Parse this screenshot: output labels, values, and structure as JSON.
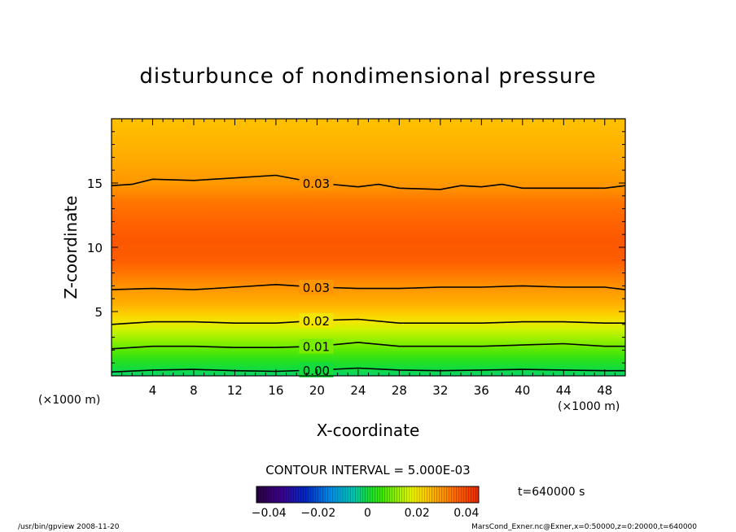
{
  "chart_data": {
    "type": "contour",
    "title": "disturbunce of nondimensional pressure",
    "xlabel": "X-coordinate",
    "ylabel": "Z-coordinate",
    "x_unit_left": "(×1000 m)",
    "x_unit_right": "(×1000 m)",
    "xlim": [
      0,
      50
    ],
    "ylim": [
      0,
      20
    ],
    "x_ticks": [
      "4",
      "8",
      "12",
      "16",
      "20",
      "24",
      "28",
      "32",
      "36",
      "40",
      "44",
      "48"
    ],
    "x_tick_values": [
      4,
      8,
      12,
      16,
      20,
      24,
      28,
      32,
      36,
      40,
      44,
      48
    ],
    "y_ticks": [
      "5",
      "10",
      "15"
    ],
    "y_tick_values": [
      5,
      10,
      15
    ],
    "contour_interval_label": "CONTOUR INTERVAL = 5.000E-03",
    "time_label": "t=640000 s",
    "colorbar": {
      "ticks": [
        "−0.04",
        "−0.02",
        "0",
        "0.02",
        "0.04"
      ],
      "tick_values": [
        -0.04,
        -0.02,
        0,
        0.02,
        0.04
      ],
      "range": [
        -0.045,
        0.045
      ]
    },
    "field_profile": [
      {
        "z": 0.0,
        "value": -0.002
      },
      {
        "z": 0.6,
        "value": 0.0
      },
      {
        "z": 1.2,
        "value": 0.003
      },
      {
        "z": 2.0,
        "value": 0.008
      },
      {
        "z": 2.4,
        "value": 0.01
      },
      {
        "z": 3.0,
        "value": 0.013
      },
      {
        "z": 3.6,
        "value": 0.016
      },
      {
        "z": 4.2,
        "value": 0.02
      },
      {
        "z": 5.0,
        "value": 0.024
      },
      {
        "z": 5.6,
        "value": 0.027
      },
      {
        "z": 6.8,
        "value": 0.03
      },
      {
        "z": 8.0,
        "value": 0.034
      },
      {
        "z": 9.0,
        "value": 0.037
      },
      {
        "z": 10.5,
        "value": 0.038
      },
      {
        "z": 12.0,
        "value": 0.036
      },
      {
        "z": 13.5,
        "value": 0.034
      },
      {
        "z": 14.8,
        "value": 0.03
      },
      {
        "z": 16.5,
        "value": 0.028
      },
      {
        "z": 18.5,
        "value": 0.026
      },
      {
        "z": 20.0,
        "value": 0.025
      }
    ],
    "contour_lines": [
      {
        "label": "0.00",
        "level": 0.0,
        "points": [
          [
            0,
            0.3
          ],
          [
            4,
            0.45
          ],
          [
            8,
            0.5
          ],
          [
            12,
            0.4
          ],
          [
            16,
            0.35
          ],
          [
            20,
            0.45
          ],
          [
            24,
            0.6
          ],
          [
            28,
            0.45
          ],
          [
            32,
            0.4
          ],
          [
            36,
            0.45
          ],
          [
            40,
            0.5
          ],
          [
            44,
            0.45
          ],
          [
            48,
            0.4
          ],
          [
            50,
            0.4
          ]
        ]
      },
      {
        "label": "0.01",
        "level": 0.01,
        "points": [
          [
            0,
            2.1
          ],
          [
            4,
            2.3
          ],
          [
            8,
            2.3
          ],
          [
            12,
            2.2
          ],
          [
            16,
            2.2
          ],
          [
            20,
            2.3
          ],
          [
            24,
            2.6
          ],
          [
            28,
            2.3
          ],
          [
            32,
            2.3
          ],
          [
            36,
            2.3
          ],
          [
            40,
            2.4
          ],
          [
            44,
            2.5
          ],
          [
            48,
            2.3
          ],
          [
            50,
            2.3
          ]
        ]
      },
      {
        "label": "0.02",
        "level": 0.02,
        "points": [
          [
            0,
            4.0
          ],
          [
            4,
            4.2
          ],
          [
            8,
            4.2
          ],
          [
            12,
            4.1
          ],
          [
            16,
            4.1
          ],
          [
            20,
            4.3
          ],
          [
            24,
            4.4
          ],
          [
            28,
            4.1
          ],
          [
            32,
            4.1
          ],
          [
            36,
            4.1
          ],
          [
            40,
            4.2
          ],
          [
            44,
            4.2
          ],
          [
            48,
            4.1
          ],
          [
            50,
            4.1
          ]
        ]
      },
      {
        "label": "0.03",
        "level": 0.03,
        "points": [
          [
            0,
            6.7
          ],
          [
            4,
            6.8
          ],
          [
            8,
            6.7
          ],
          [
            12,
            6.9
          ],
          [
            16,
            7.1
          ],
          [
            20,
            6.9
          ],
          [
            24,
            6.8
          ],
          [
            28,
            6.8
          ],
          [
            32,
            6.9
          ],
          [
            36,
            6.9
          ],
          [
            40,
            7.0
          ],
          [
            44,
            6.9
          ],
          [
            48,
            6.9
          ],
          [
            50,
            6.7
          ]
        ]
      },
      {
        "label": "0.03",
        "level": 0.03,
        "points": [
          [
            0,
            14.8
          ],
          [
            2,
            14.9
          ],
          [
            4,
            15.3
          ],
          [
            8,
            15.2
          ],
          [
            12,
            15.4
          ],
          [
            16,
            15.6
          ],
          [
            20,
            15.0
          ],
          [
            24,
            14.7
          ],
          [
            26,
            14.9
          ],
          [
            28,
            14.6
          ],
          [
            32,
            14.5
          ],
          [
            34,
            14.8
          ],
          [
            36,
            14.7
          ],
          [
            38,
            14.9
          ],
          [
            40,
            14.6
          ],
          [
            44,
            14.6
          ],
          [
            48,
            14.6
          ],
          [
            50,
            14.8
          ]
        ]
      }
    ]
  },
  "footer": {
    "left": "/usr/bin/gpview   2008-11-20",
    "right": "MarsCond_Exner.nc@Exner,x=0:50000,z=0:20000,t=640000"
  }
}
